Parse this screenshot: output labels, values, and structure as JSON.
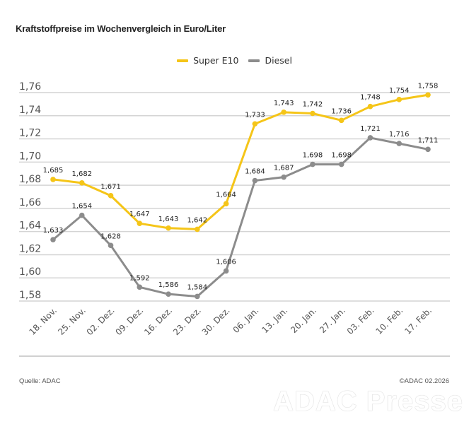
{
  "chart_data": {
    "type": "line",
    "title": "Kraftstoffpreise im Wochenvergleich in Euro/Liter",
    "xlabel": "",
    "ylabel": "",
    "categories": [
      "18. Nov.",
      "25. Nov.",
      "02. Dez.",
      "09. Dez.",
      "16. Dez.",
      "23. Dez.",
      "30. Dez.",
      "06. Jan.",
      "13. Jan.",
      "20. Jan.",
      "27. Jan.",
      "03. Feb.",
      "10. Feb.",
      "17. Feb."
    ],
    "series": [
      {
        "name": "Super E10",
        "color": "#f5c518",
        "values": [
          1.685,
          1.682,
          1.671,
          1.647,
          1.643,
          1.642,
          1.664,
          1.733,
          1.743,
          1.742,
          1.736,
          1.748,
          1.754,
          1.758
        ],
        "labels": [
          "1,685",
          "1,682",
          "1,671",
          "1,647",
          "1,643",
          "1,642",
          "1,664",
          "1,733",
          "1,743",
          "1,742",
          "1,736",
          "1,748",
          "1,754",
          "1,758"
        ]
      },
      {
        "name": "Diesel",
        "color": "#8c8c8c",
        "values": [
          1.633,
          1.654,
          1.628,
          1.592,
          1.586,
          1.584,
          1.606,
          1.684,
          1.687,
          1.698,
          1.698,
          1.721,
          1.716,
          1.711
        ],
        "labels": [
          "1,633",
          "1,654",
          "1,628",
          "1,592",
          "1,586",
          "1,584",
          "1,606",
          "1,684",
          "1,687",
          "1,698",
          "1,698",
          "1,721",
          "1,716",
          "1,711"
        ]
      }
    ],
    "yticks": [
      1.58,
      1.6,
      1.62,
      1.64,
      1.66,
      1.68,
      1.7,
      1.72,
      1.74,
      1.76
    ],
    "ytick_labels": [
      "1,58",
      "1,60",
      "1,62",
      "1,64",
      "1,66",
      "1,68",
      "1,70",
      "1,72",
      "1,74",
      "1,76"
    ],
    "ylim": [
      1.58,
      1.76
    ],
    "grid": true,
    "legend_position": "top-center"
  },
  "footer": {
    "source": "Quelle: ADAC",
    "copyright": "©ADAC 02.2026",
    "watermark": "ADAC Presse"
  }
}
